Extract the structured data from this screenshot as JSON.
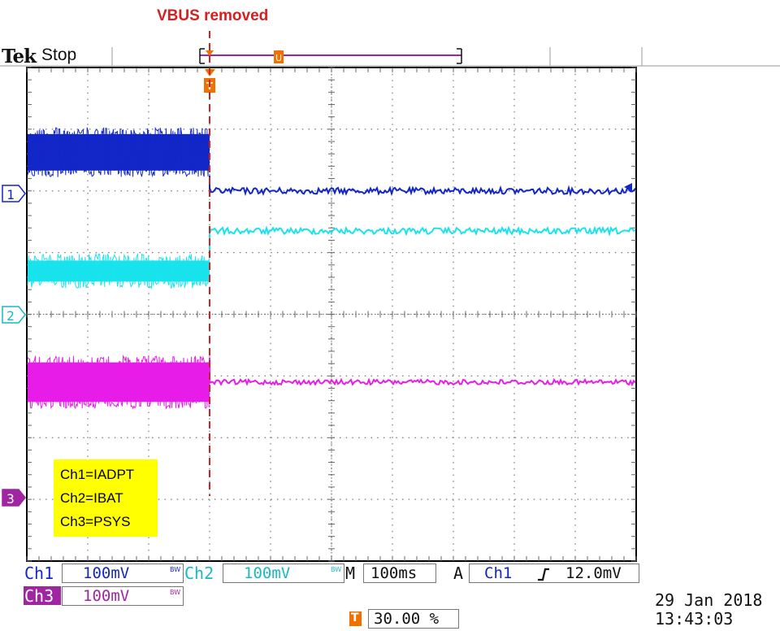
{
  "annotation": {
    "label": "VBUS removed",
    "color": "#d42020"
  },
  "header": {
    "brand": "Tek",
    "run_state": "Stop"
  },
  "colors": {
    "ch1": "#1327c8",
    "ch2": "#19e3ec",
    "ch3": "#e81ce8",
    "trigger": "#f07000",
    "timebar": "#a025a0",
    "legend_bg": "#ffff00"
  },
  "markers": {
    "ch1": "1",
    "ch2": "2",
    "ch3": "3",
    "trigger": "T"
  },
  "legend": {
    "lines": [
      "Ch1=IADPT",
      "Ch2=IBAT",
      "Ch3=PSYS"
    ]
  },
  "readouts": {
    "ch1": {
      "label": "Ch1",
      "scale": "100mV",
      "bw": "BW"
    },
    "ch2": {
      "label": "Ch2",
      "scale": "100mV",
      "bw": "BW"
    },
    "ch3": {
      "label": "Ch3",
      "scale": "100mV",
      "bw": "BW"
    },
    "timebase": {
      "label": "M",
      "value": "100ms"
    },
    "trigger": {
      "mode": "A",
      "source": "Ch1",
      "slope_icon": "rising-edge-icon",
      "level": "12.0mV"
    },
    "position": {
      "value": "30.00 %"
    },
    "date": "29 Jan  2018",
    "time": "13:43:03"
  },
  "chart_data": {
    "type": "line",
    "title": "",
    "xlabel": "",
    "ylabel": "",
    "x_unit": "div",
    "y_unit": "div",
    "xlim": [
      0,
      10
    ],
    "ylim": [
      -4,
      4
    ],
    "grid": true,
    "grid_divisions": {
      "x": 10,
      "y": 8
    },
    "event": {
      "label": "VBUS removed",
      "x": 3.0
    },
    "series": [
      {
        "name": "Ch1=IADPT",
        "channel": "Ch1",
        "before": {
          "x": [
            0,
            3.0
          ],
          "low": 2.25,
          "high": 3.0
        },
        "after": {
          "x": [
            3.0,
            10
          ],
          "level": 2.0,
          "noise": 0.05
        }
      },
      {
        "name": "Ch2=IBAT",
        "channel": "Ch2",
        "before": {
          "x": [
            0,
            3.0
          ],
          "low": 0.45,
          "high": 0.95
        },
        "after": {
          "x": [
            3.0,
            10
          ],
          "level": 1.35,
          "noise": 0.05
        }
      },
      {
        "name": "Ch3=PSYS",
        "channel": "Ch3",
        "before": {
          "x": [
            0,
            3.0
          ],
          "low": -1.5,
          "high": -0.7
        },
        "after": {
          "x": [
            3.0,
            10
          ],
          "level": -1.1,
          "noise": 0.04
        }
      }
    ],
    "offsets_div": {
      "ch1": 2.0,
      "ch2": 0.0,
      "ch3": -3.0
    },
    "trigger_x_div": 3.0
  }
}
